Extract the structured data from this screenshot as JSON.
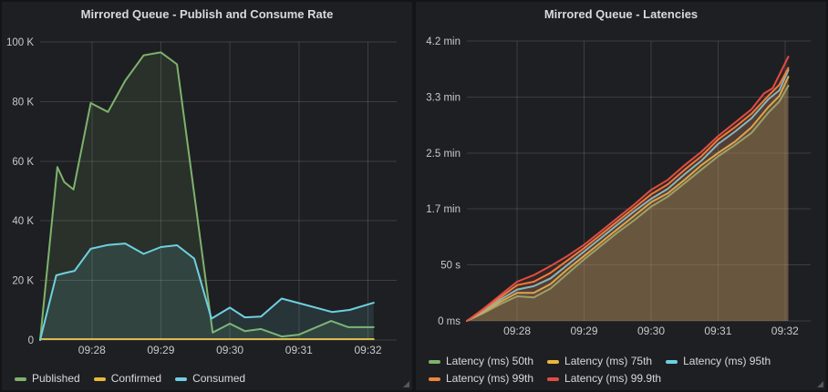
{
  "colors": {
    "page_bg": "#141416",
    "panel_bg": "#1e1f22",
    "grid": "rgba(255,255,255,0.14)",
    "title_text": "#d8d9da",
    "axis_text": "#c8c9cb",
    "legend_text": "#d8d9da",
    "resize_handle": "#55575b",
    "series_green": "#7EB26D",
    "series_yellow": "#EAB839",
    "series_cyan": "#6ED0E0",
    "series_orange": "#EF843C",
    "series_red": "#E24D42"
  },
  "chart_data": [
    {
      "type": "area",
      "title": "Mirrored Queue - Publish and Consume Rate",
      "x_tick_labels": [
        "09:28",
        "09:29",
        "09:30",
        "09:31",
        "09:32"
      ],
      "x_ticks_sec": [
        45,
        105,
        165,
        225,
        285
      ],
      "x_domain_sec": [
        0,
        310
      ],
      "y_max": 100,
      "y_ticks": [
        {
          "v": 0,
          "label": "0"
        },
        {
          "v": 20,
          "label": "20 K"
        },
        {
          "v": 40,
          "label": "40 K"
        },
        {
          "v": 60,
          "label": "60 K"
        },
        {
          "v": 80,
          "label": "80 K"
        },
        {
          "v": 100,
          "label": "100 K"
        }
      ],
      "y_unit": "messages per second (thousands)",
      "grid": true,
      "legend_position": "bottom",
      "series": [
        {
          "name": "Published",
          "color": "#7EB26D",
          "points": [
            [
              0,
              0
            ],
            [
              15,
              58
            ],
            [
              21,
              53
            ],
            [
              29,
              50.5
            ],
            [
              44,
              79.5
            ],
            [
              59,
              76.5
            ],
            [
              74,
              87
            ],
            [
              90,
              95.5
            ],
            [
              105,
              96.5
            ],
            [
              119,
              92.5
            ],
            [
              150,
              2.5
            ],
            [
              165,
              5.5
            ],
            [
              178,
              3
            ],
            [
              192,
              3.7
            ],
            [
              210,
              1.2
            ],
            [
              225,
              1.8
            ],
            [
              253,
              6.4
            ],
            [
              268,
              4.3
            ],
            [
              290,
              4.3
            ]
          ]
        },
        {
          "name": "Confirmed",
          "color": "#EAB839",
          "points": [
            [
              0,
              0.3
            ],
            [
              290,
              0.3
            ]
          ]
        },
        {
          "name": "Consumed",
          "color": "#6ED0E0",
          "points": [
            [
              0,
              0
            ],
            [
              14,
              21.7
            ],
            [
              22,
              22.5
            ],
            [
              30,
              23.2
            ],
            [
              44,
              30.6
            ],
            [
              59,
              31.9
            ],
            [
              74,
              32.4
            ],
            [
              90,
              28.9
            ],
            [
              105,
              31.2
            ],
            [
              119,
              31.8
            ],
            [
              134,
              27.3
            ],
            [
              149,
              7.2
            ],
            [
              165,
              10.9
            ],
            [
              178,
              7.6
            ],
            [
              192,
              7.9
            ],
            [
              210,
              13.9
            ],
            [
              225,
              12.4
            ],
            [
              254,
              9.4
            ],
            [
              269,
              10.1
            ],
            [
              290,
              12.5
            ]
          ]
        }
      ]
    },
    {
      "type": "area",
      "title": "Mirrored Queue - Latencies",
      "x_tick_labels": [
        "09:28",
        "09:29",
        "09:30",
        "09:31",
        "09:32"
      ],
      "x_ticks_sec": [
        45,
        105,
        165,
        225,
        285
      ],
      "x_domain_sec": [
        0,
        308
      ],
      "y_max": 250,
      "y_ticks": [
        {
          "v": 0,
          "label": "0 ms"
        },
        {
          "v": 50,
          "label": "50 s"
        },
        {
          "v": 100,
          "label": "1.7 min"
        },
        {
          "v": 150,
          "label": "2.5 min"
        },
        {
          "v": 200,
          "label": "3.3 min"
        },
        {
          "v": 250,
          "label": "4.2 min"
        }
      ],
      "y_unit": "latency (seconds)",
      "grid": true,
      "legend_position": "bottom",
      "series": [
        {
          "name": "Latency (ms) 50th",
          "color": "#7EB26D",
          "points": [
            [
              0,
              0
            ],
            [
              15,
              7
            ],
            [
              30,
              15
            ],
            [
              45,
              22
            ],
            [
              60,
              21
            ],
            [
              75,
              29
            ],
            [
              90,
              42
            ],
            [
              105,
              55
            ],
            [
              120,
              67
            ],
            [
              135,
              79
            ],
            [
              150,
              90
            ],
            [
              165,
              102
            ],
            [
              180,
              111
            ],
            [
              195,
              123
            ],
            [
              210,
              135
            ],
            [
              225,
              147
            ],
            [
              240,
              157
            ],
            [
              255,
              168
            ],
            [
              270,
              186
            ],
            [
              280,
              196
            ],
            [
              288,
              210
            ]
          ]
        },
        {
          "name": "Latency (ms) 75th",
          "color": "#EAB839",
          "points": [
            [
              0,
              0
            ],
            [
              15,
              8
            ],
            [
              30,
              17
            ],
            [
              45,
              25
            ],
            [
              60,
              25
            ],
            [
              75,
              33
            ],
            [
              90,
              46
            ],
            [
              105,
              58
            ],
            [
              120,
              70
            ],
            [
              135,
              82
            ],
            [
              150,
              94
            ],
            [
              165,
              106
            ],
            [
              180,
              114
            ],
            [
              195,
              126
            ],
            [
              210,
              139
            ],
            [
              225,
              150
            ],
            [
              240,
              160
            ],
            [
              255,
              173
            ],
            [
              270,
              191
            ],
            [
              280,
              201
            ],
            [
              288,
              218
            ]
          ]
        },
        {
          "name": "Latency (ms) 95th",
          "color": "#6ED0E0",
          "points": [
            [
              0,
              0
            ],
            [
              15,
              9
            ],
            [
              30,
              19
            ],
            [
              45,
              28
            ],
            [
              60,
              31
            ],
            [
              75,
              38
            ],
            [
              90,
              50
            ],
            [
              105,
              62
            ],
            [
              120,
              74
            ],
            [
              135,
              86
            ],
            [
              150,
              98
            ],
            [
              165,
              109
            ],
            [
              180,
              118
            ],
            [
              195,
              131
            ],
            [
              210,
              143
            ],
            [
              225,
              158
            ],
            [
              240,
              169
            ],
            [
              255,
              181
            ],
            [
              270,
              198
            ],
            [
              280,
              206
            ],
            [
              288,
              224
            ]
          ]
        },
        {
          "name": "Latency (ms) 99th",
          "color": "#EF843C",
          "points": [
            [
              0,
              0
            ],
            [
              15,
              10
            ],
            [
              30,
              21
            ],
            [
              45,
              32
            ],
            [
              60,
              35
            ],
            [
              75,
              43
            ],
            [
              90,
              54
            ],
            [
              105,
              65
            ],
            [
              120,
              77
            ],
            [
              135,
              89
            ],
            [
              150,
              101
            ],
            [
              165,
              113
            ],
            [
              180,
              122
            ],
            [
              195,
              135
            ],
            [
              210,
              147
            ],
            [
              225,
              162
            ],
            [
              240,
              173
            ],
            [
              255,
              185
            ],
            [
              270,
              201
            ],
            [
              280,
              211
            ],
            [
              288,
              226
            ]
          ]
        },
        {
          "name": "Latency (ms) 99.9th",
          "color": "#E24D42",
          "points": [
            [
              0,
              0
            ],
            [
              15,
              11
            ],
            [
              30,
              23
            ],
            [
              45,
              35
            ],
            [
              60,
              41
            ],
            [
              75,
              49
            ],
            [
              90,
              58
            ],
            [
              105,
              68
            ],
            [
              120,
              80
            ],
            [
              135,
              92
            ],
            [
              150,
              104
            ],
            [
              165,
              117
            ],
            [
              180,
              126
            ],
            [
              195,
              139
            ],
            [
              210,
              151
            ],
            [
              225,
              165
            ],
            [
              240,
              177
            ],
            [
              255,
              189
            ],
            [
              266,
              203
            ],
            [
              274,
              208
            ],
            [
              288,
              236
            ]
          ]
        }
      ]
    }
  ]
}
